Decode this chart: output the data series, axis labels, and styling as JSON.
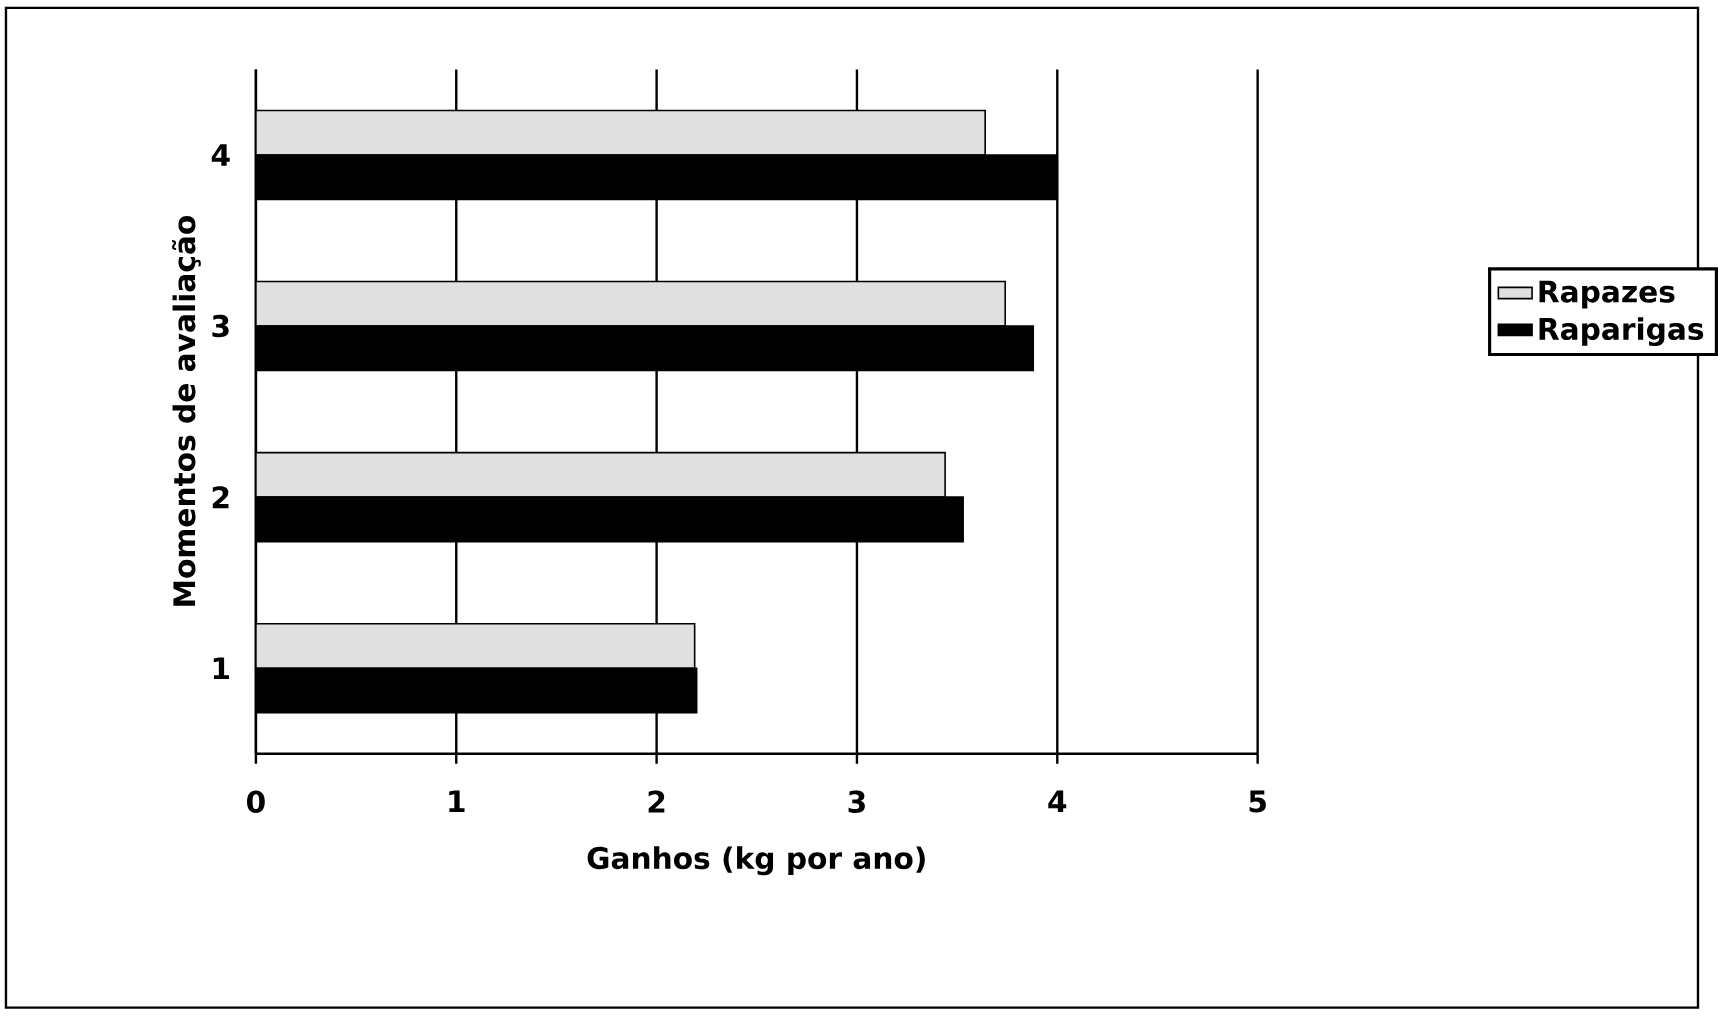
{
  "chart_data": {
    "type": "bar",
    "orientation": "horizontal",
    "categories": [
      "4",
      "3",
      "2",
      "1"
    ],
    "series": [
      {
        "name": "Rapazes",
        "color": "#e0e0e0",
        "values": [
          3.64,
          3.74,
          3.44,
          2.19
        ]
      },
      {
        "name": "Raparigas",
        "color": "#000000",
        "values": [
          4.0,
          3.88,
          3.53,
          2.2
        ]
      }
    ],
    "xlim": [
      0,
      5
    ],
    "xticks": [
      0,
      1,
      2,
      3,
      4,
      5
    ],
    "xlabel": "Ganhos (kg por ano)",
    "ylabel": "Momentos de avaliação",
    "grid": "x",
    "legend": "right"
  }
}
